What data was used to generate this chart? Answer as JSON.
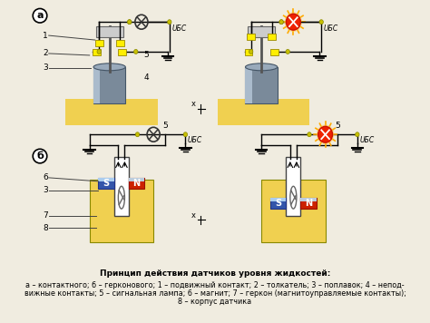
{
  "title": "Принцип действия датчиков уровня жидкостей:",
  "caption_line1": "а – контактного; б – герконового; 1 – подвижный контакт; 2 – толкатель; 3 – поплавок; 4 – непод-",
  "caption_line2": "вижные контакты; 5 – сигнальная лампа; 6 – магнит; 7 – геркон (магнитоуправляемые контакты);",
  "caption_line3": "8 – корпус датчика",
  "bg_color": "#f0ece0",
  "label_a": "а",
  "label_b": "б",
  "u_bc": "UБС",
  "fig_width": 4.74,
  "fig_height": 3.56
}
